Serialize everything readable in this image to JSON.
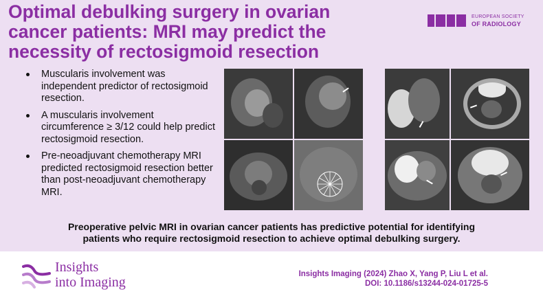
{
  "title": {
    "line1": "Optimal debulking surgery in ovarian",
    "line2": "cancer patients: MRI may predict the",
    "line3": "necessity of rectosigmoid resection"
  },
  "esr_logo": {
    "line1": "EUROPEAN SOCIETY",
    "line2": "OF RADIOLOGY",
    "accent": "#8b2ea3"
  },
  "bullets": [
    "Muscularis involvement was independent predictor of rectosigmoid resection.",
    "A muscularis involvement circumference ≥ 3/12 could help predict rectosigmoid resection.",
    "Pre-neoadjuvant chemotherapy MRI predicted rectosigmoid resection better than post-neoadjuvant chemotherapy MRI."
  ],
  "summary": {
    "line1": "Preoperative pelvic MRI in ovarian cancer patients has predictive potential for identifying",
    "line2": "patients who require rectosigmoid resection to achieve optimal debulking surgery."
  },
  "journal_logo": {
    "line1": "Insights",
    "line2": "into Imaging"
  },
  "citation": {
    "line1": "Insights Imaging (2024) Zhao X, Yang P, Liu L et al.",
    "line2": "DOI: 10.1186/s13244-024-01725-5"
  },
  "colors": {
    "accent": "#8b2ea3",
    "background_top": "#eddff2",
    "background_bottom": "#ffffff"
  },
  "images": [
    {
      "name": "mri-sagittal-1"
    },
    {
      "name": "mri-sagittal-2"
    },
    {
      "name": "mri-axial-1"
    },
    {
      "name": "mri-axial-clock"
    },
    {
      "name": "mri-sagittal-3"
    },
    {
      "name": "mri-axial-2"
    },
    {
      "name": "mri-axial-3"
    },
    {
      "name": "mri-axial-4"
    }
  ]
}
